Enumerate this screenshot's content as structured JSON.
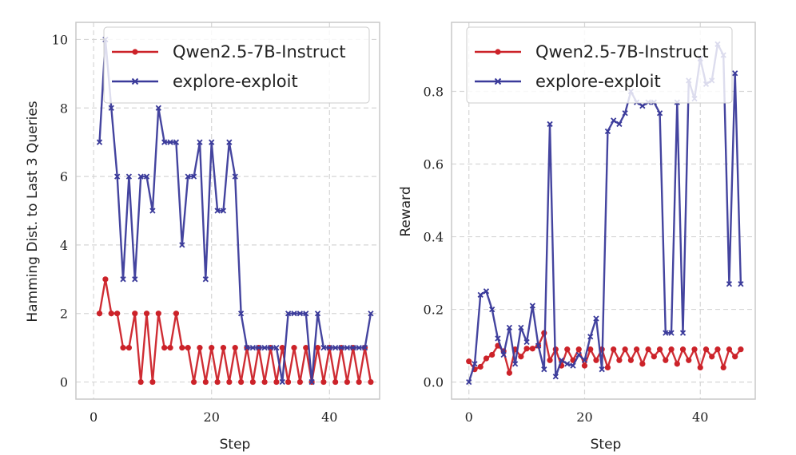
{
  "colors": {
    "red": "#cc2229",
    "blue": "#3a3a9a",
    "grid": "#d6d6d6",
    "frame": "#c8c8c8"
  },
  "chart_data": [
    {
      "type": "line",
      "xlabel": "Step",
      "ylabel": "Hamming Dist. to Last 3 Queries",
      "xlim": [
        -3,
        48.5
      ],
      "ylim": [
        -0.5,
        10.5
      ],
      "xticks": [
        0,
        20,
        40
      ],
      "xtick_labels": [
        "0",
        "20",
        "40"
      ],
      "yticks": [
        0,
        2,
        4,
        6,
        8,
        10
      ],
      "ytick_labels": [
        "0",
        "2",
        "4",
        "6",
        "8",
        "10"
      ],
      "grid": true,
      "legend_position": "top-right",
      "series": [
        {
          "name": "Qwen2.5-7B-Instruct",
          "color": "#cc2229",
          "marker": "circle",
          "x": [
            1,
            2,
            3,
            4,
            5,
            6,
            7,
            8,
            9,
            10,
            11,
            12,
            13,
            14,
            15,
            16,
            17,
            18,
            19,
            20,
            21,
            22,
            23,
            24,
            25,
            26,
            27,
            28,
            29,
            30,
            31,
            32,
            33,
            34,
            35,
            36,
            37,
            38,
            39,
            40,
            41,
            42,
            43,
            44,
            45,
            46,
            47
          ],
          "values": [
            2,
            3,
            2,
            2,
            1,
            1,
            2,
            0,
            2,
            0,
            2,
            1,
            1,
            2,
            1,
            1,
            0,
            1,
            0,
            1,
            0,
            1,
            0,
            1,
            0,
            1,
            0,
            1,
            0,
            1,
            0,
            1,
            0,
            1,
            0,
            1,
            0,
            1,
            0,
            1,
            0,
            1,
            0,
            1,
            0,
            1,
            0
          ]
        },
        {
          "name": "explore-exploit",
          "color": "#3a3a9a",
          "marker": "x",
          "x": [
            1,
            2,
            3,
            4,
            5,
            6,
            7,
            8,
            9,
            10,
            11,
            12,
            13,
            14,
            15,
            16,
            17,
            18,
            19,
            20,
            21,
            22,
            23,
            24,
            25,
            26,
            27,
            28,
            29,
            30,
            31,
            32,
            33,
            34,
            35,
            36,
            37,
            38,
            39,
            40,
            41,
            42,
            43,
            44,
            45,
            46,
            47
          ],
          "values": [
            7,
            10,
            8,
            6,
            3,
            6,
            3,
            6,
            6,
            5,
            8,
            7,
            7,
            7,
            4,
            6,
            6,
            7,
            3,
            7,
            5,
            5,
            7,
            6,
            2,
            1,
            1,
            1,
            1,
            1,
            1,
            0,
            2,
            2,
            2,
            2,
            0,
            2,
            1,
            1,
            1,
            1,
            1,
            1,
            1,
            1,
            2
          ]
        }
      ]
    },
    {
      "type": "line",
      "xlabel": "Step",
      "ylabel": "Reward",
      "xlim": [
        -3,
        49.5
      ],
      "ylim": [
        -0.047,
        0.99
      ],
      "xticks": [
        0,
        20,
        40
      ],
      "xtick_labels": [
        "0",
        "20",
        "40"
      ],
      "yticks": [
        0.0,
        0.2,
        0.4,
        0.6,
        0.8
      ],
      "ytick_labels": [
        "0.0",
        "0.2",
        "0.4",
        "0.6",
        "0.8"
      ],
      "grid": true,
      "legend_position": "top-right",
      "series": [
        {
          "name": "Qwen2.5-7B-Instruct",
          "color": "#cc2229",
          "marker": "circle",
          "x": [
            0,
            1,
            2,
            3,
            4,
            5,
            6,
            7,
            8,
            9,
            10,
            11,
            12,
            13,
            14,
            15,
            16,
            17,
            18,
            19,
            20,
            21,
            22,
            23,
            24,
            25,
            26,
            27,
            28,
            29,
            30,
            31,
            32,
            33,
            34,
            35,
            36,
            37,
            38,
            39,
            40,
            41,
            42,
            43,
            44,
            45,
            46,
            47
          ],
          "values": [
            0.057,
            0.035,
            0.042,
            0.065,
            0.075,
            0.1,
            0.085,
            0.025,
            0.09,
            0.07,
            0.092,
            0.092,
            0.1,
            0.135,
            0.06,
            0.09,
            0.045,
            0.09,
            0.06,
            0.09,
            0.045,
            0.09,
            0.06,
            0.09,
            0.04,
            0.09,
            0.06,
            0.09,
            0.06,
            0.09,
            0.05,
            0.09,
            0.07,
            0.09,
            0.06,
            0.09,
            0.05,
            0.09,
            0.06,
            0.09,
            0.04,
            0.09,
            0.07,
            0.09,
            0.04,
            0.09,
            0.07,
            0.09
          ]
        },
        {
          "name": "explore-exploit",
          "color": "#3a3a9a",
          "marker": "x",
          "x": [
            0,
            1,
            2,
            3,
            4,
            5,
            6,
            7,
            8,
            9,
            10,
            11,
            12,
            13,
            14,
            15,
            16,
            17,
            18,
            19,
            20,
            21,
            22,
            23,
            24,
            25,
            26,
            27,
            28,
            29,
            30,
            31,
            32,
            33,
            34,
            35,
            36,
            37,
            38,
            39,
            40,
            41,
            42,
            43,
            44,
            45,
            46,
            47
          ],
          "values": [
            0.0,
            0.05,
            0.24,
            0.25,
            0.2,
            0.12,
            0.075,
            0.15,
            0.05,
            0.15,
            0.11,
            0.21,
            0.1,
            0.035,
            0.71,
            0.015,
            0.06,
            0.05,
            0.045,
            0.075,
            0.06,
            0.125,
            0.175,
            0.035,
            0.69,
            0.72,
            0.71,
            0.74,
            0.8,
            0.77,
            0.76,
            0.77,
            0.77,
            0.74,
            0.135,
            0.135,
            0.77,
            0.135,
            0.83,
            0.78,
            0.89,
            0.82,
            0.83,
            0.93,
            0.9,
            0.27,
            0.85,
            0.27
          ]
        }
      ]
    }
  ]
}
